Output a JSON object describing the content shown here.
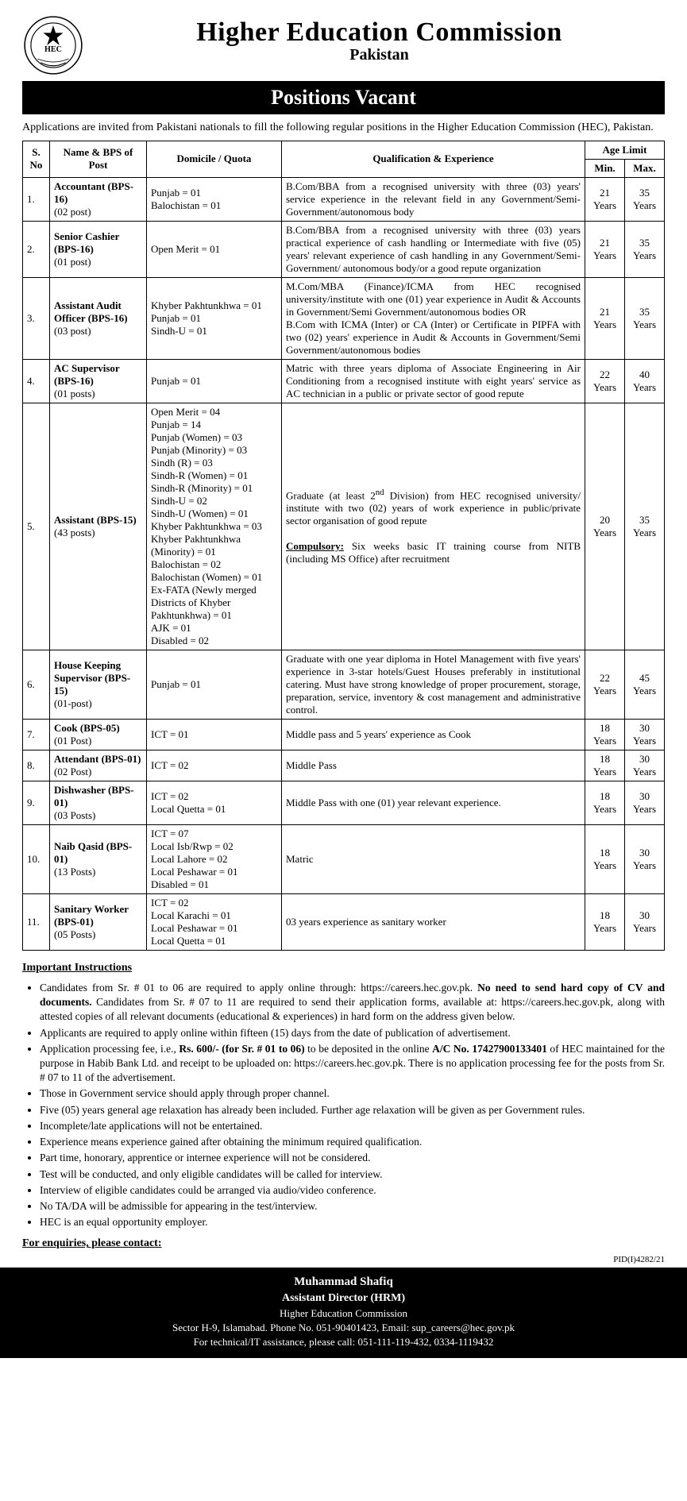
{
  "header": {
    "title": "Higher Education Commission",
    "subtitle": "Pakistan",
    "banner": "Positions Vacant"
  },
  "intro": "Applications are invited from Pakistani nationals to fill the following regular positions in the Higher Education Commission (HEC), Pakistan.",
  "table": {
    "headers": {
      "sno": "S. No",
      "name": "Name & BPS of Post",
      "domicile": "Domicile / Quota",
      "qual": "Qualification & Experience",
      "age": "Age Limit",
      "min": "Min.",
      "max": "Max."
    },
    "rows": [
      {
        "sno": "1.",
        "name": "Accountant (BPS-16)",
        "posts": "(02 post)",
        "domicile": "Punjab = 01\nBalochistan = 01",
        "qual": "B.Com/BBA from a recognised university with three (03) years' service experience in the relevant field in any Government/Semi-Government/autonomous body",
        "min": "21 Years",
        "max": "35 Years"
      },
      {
        "sno": "2.",
        "name": "Senior Cashier (BPS-16)",
        "posts": "(01 post)",
        "domicile": "Open Merit = 01",
        "qual": "B.Com/BBA from a recognised university with three (03) years practical experience of cash handling or Intermediate with five (05) years' relevant experience of cash handling in any Government/Semi-Government/ autonomous body/or a good repute organization",
        "min": "21 Years",
        "max": "35 Years"
      },
      {
        "sno": "3.",
        "name": "Assistant Audit Officer (BPS-16)",
        "posts": "(03 post)",
        "domicile": "Khyber Pakhtunkhwa = 01\nPunjab = 01\nSindh-U = 01",
        "qual": "M.Com/MBA (Finance)/ICMA from HEC recognised university/institute with one (01) year experience in Audit & Accounts in Government/Semi Government/autonomous bodies  OR\nB.Com with ICMA (Inter) or CA (Inter) or Certificate in PIPFA with two (02) years' experience in Audit & Accounts in Government/Semi Government/autonomous bodies",
        "min": "21 Years",
        "max": "35 Years"
      },
      {
        "sno": "4.",
        "name": "AC Supervisor (BPS-16)",
        "posts": "(01 posts)",
        "domicile": "Punjab = 01",
        "qual": "Matric with three years diploma of Associate Engineering in Air Conditioning from a recognised institute with eight years' service as AC technician in a public or private sector of good repute",
        "min": "22 Years",
        "max": "40 Years"
      },
      {
        "sno": "5.",
        "name": "Assistant (BPS-15)",
        "posts": "(43 posts)",
        "domicile": "Open Merit = 04\nPunjab = 14\nPunjab (Women) = 03\nPunjab (Minority) = 03\nSindh (R) = 03\nSindh-R (Women) = 01\nSindh-R (Minority) = 01\nSindh-U = 02\nSindh-U (Women) = 01\nKhyber Pakhtunkhwa = 03\nKhyber Pakhtunkhwa (Minority) = 01\nBalochistan = 02\nBalochistan (Women) = 01\nEx-FATA (Newly merged Districts of Khyber Pakhtunkhwa) = 01\nAJK = 01\nDisabled = 02",
        "qual_html": "Graduate (at least 2<sup>nd</sup> Division) from HEC recognised university/ institute with two (02) years of work experience in public/private sector organisation of good repute<br><br><span class='bold underline'>Compulsory:</span> Six weeks basic IT training course from NITB (including MS Office) after recruitment",
        "min": "20 Years",
        "max": "35 Years"
      },
      {
        "sno": "6.",
        "name": "House Keeping Supervisor (BPS-15)",
        "posts": "(01-post)",
        "domicile": "Punjab = 01",
        "qual": "Graduate with one year diploma in Hotel Management with five years' experience in 3-star hotels/Guest Houses preferably in institutional catering. Must have strong knowledge of proper procurement, storage, preparation, service, inventory & cost management and administrative control.",
        "min": "22 Years",
        "max": "45 Years"
      },
      {
        "sno": "7.",
        "name": "Cook (BPS-05)",
        "posts": "(01 Post)",
        "domicile": "ICT = 01",
        "qual": "Middle pass and 5 years' experience as Cook",
        "min": "18 Years",
        "max": "30 Years"
      },
      {
        "sno": "8.",
        "name": "Attendant (BPS-01)",
        "posts": "(02 Post)",
        "domicile": "ICT = 02",
        "qual": "Middle Pass",
        "min": "18 Years",
        "max": "30 Years"
      },
      {
        "sno": "9.",
        "name": "Dishwasher (BPS-01)",
        "posts": "(03 Posts)",
        "domicile": "ICT = 02\nLocal Quetta  = 01",
        "qual": "Middle Pass with one (01) year relevant experience.",
        "min": "18 Years",
        "max": "30 Years"
      },
      {
        "sno": "10.",
        "name": "Naib Qasid (BPS-01)",
        "posts": "(13 Posts)",
        "domicile": "ICT = 07\nLocal Isb/Rwp = 02\nLocal Lahore = 02\nLocal Peshawar = 01\nDisabled = 01",
        "qual": "Matric",
        "min": "18 Years",
        "max": "30 Years"
      },
      {
        "sno": "11.",
        "name": "Sanitary Worker (BPS-01)",
        "posts": "(05 Posts)",
        "domicile": "ICT = 02\nLocal Karachi = 01\nLocal Peshawar = 01\nLocal Quetta = 01",
        "qual": "03 years experience as sanitary worker",
        "min": "18 Years",
        "max": "30 Years"
      }
    ]
  },
  "instructions_title": "Important Instructions",
  "instructions": [
    "Candidates from Sr. # 01 to 06 are required to apply online through: https://careers.hec.gov.pk. <b>No need to send hard copy of CV and documents.</b> Candidates from Sr. # 07 to 11 are required to send their application forms, available at: https://careers.hec.gov.pk, along with attested copies of all relevant documents (educational & experiences) in hard form on the address given below.",
    "Applicants are required to apply online within fifteen (15) days from the date of publication of advertisement.",
    "Application processing fee, i.e., <b>Rs. 600/- (for Sr. # 01 to 06)</b> to be deposited in the online <b>A/C No. 17427900133401</b> of HEC maintained for the purpose in Habib Bank Ltd. and receipt to be uploaded on: https://careers.hec.gov.pk. There is no application processing fee for the posts from Sr. # 07 to 11 of the advertisement.",
    "Those in Government service should apply through proper channel.",
    "Five (05) years general age relaxation has already been included. Further age relaxation will be given as per Government rules.",
    "Incomplete/late applications will not be entertained.",
    "Experience means experience gained after obtaining the minimum required qualification.",
    "Part time, honorary, apprentice or internee experience will not be considered.",
    "Test will be conducted, and only eligible candidates will be called for interview.",
    "Interview of eligible candidates could be arranged via audio/video conference.",
    "No TA/DA will be admissible for appearing in the test/interview.",
    "HEC is an equal opportunity employer."
  ],
  "enquiries": "For enquiries, please contact:",
  "pid": "PID(I)4282/21",
  "footer": {
    "name": "Muhammad Shafiq",
    "title": "Assistant Director (HRM)",
    "org": "Higher Education Commission",
    "address": "Sector H-9, Islamabad. Phone No.  051-90401423, Email: sup_careers@hec.gov.pk",
    "tech": "For technical/IT assistance, please call: 051-111-119-432, 0334-1119432"
  },
  "colors": {
    "text": "#000000",
    "background": "#ffffff",
    "banner_bg": "#000000",
    "banner_fg": "#ffffff"
  }
}
